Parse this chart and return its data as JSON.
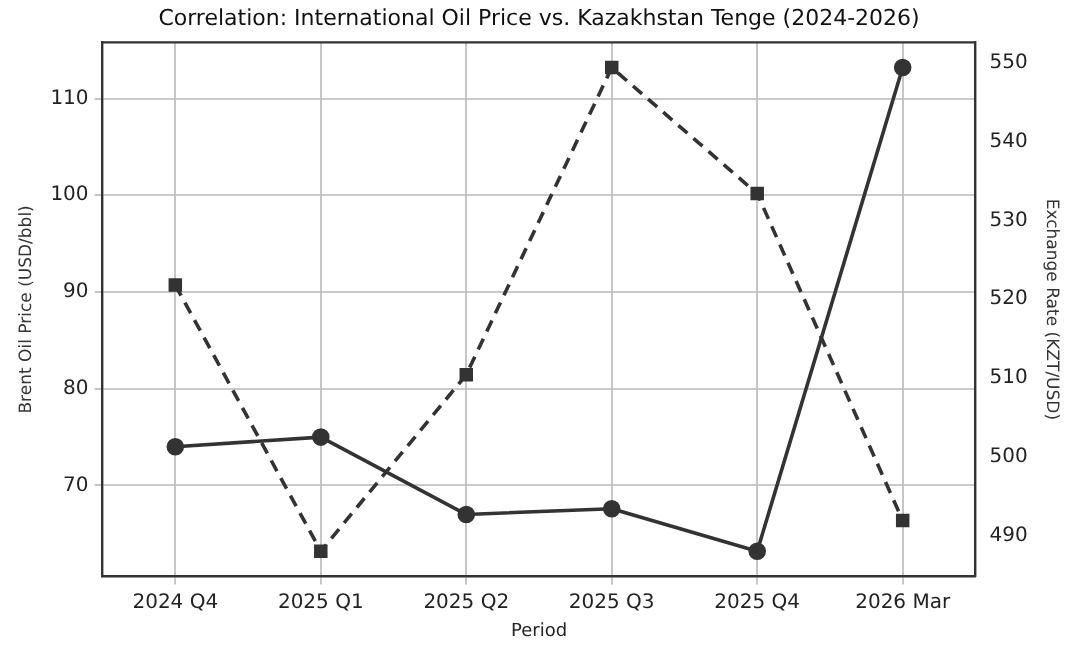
{
  "chart_data": {
    "type": "line",
    "title": "Correlation: International Oil Price vs. Kazakhstan Tenge (2024-2026)",
    "xlabel": "Period",
    "ylabel": "Brent Oil Price (USD/bbl)",
    "y2label": "Exchange Rate (KZT/USD)",
    "categories": [
      "2024 Q4",
      "2025 Q1",
      "2025 Q2",
      "2025 Q3",
      "2025 Q4",
      "2026 Mar"
    ],
    "series": [
      {
        "color": "#333333",
        "values": [
          74.0,
          75.0,
          67.0,
          67.6,
          63.2,
          113.2
        ],
        "marker": "circle",
        "line_style": "solid"
      },
      {
        "color": "#333333",
        "values": [
          521.8,
          488.0,
          510.4,
          549.4,
          533.4,
          491.9
        ],
        "axis": "y2",
        "marker": "square",
        "line_style": "dashed"
      }
    ],
    "ylim": [
      60.6,
      115.8
    ],
    "yticks": [
      70,
      80,
      90,
      100,
      110
    ],
    "y2lim": [
      484.8,
      552.6
    ],
    "y2ticks": [
      490,
      500,
      510,
      520,
      530,
      540,
      550
    ],
    "grid": true,
    "legend": false
  }
}
